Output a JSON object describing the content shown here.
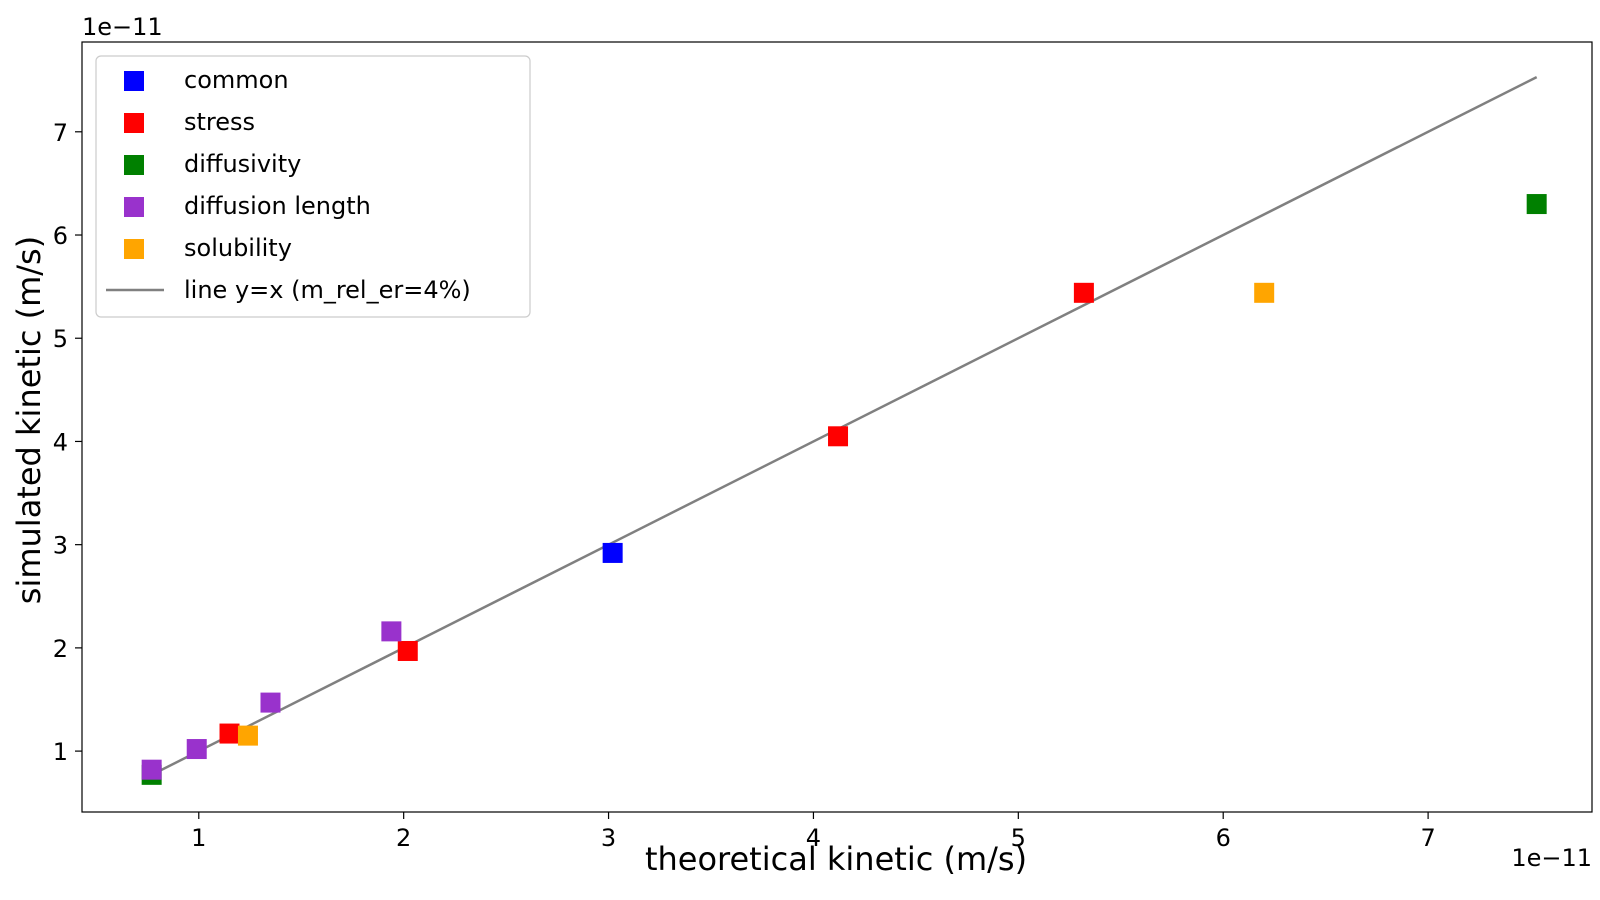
{
  "chart_data": {
    "type": "scatter",
    "xlabel": "theoretical kinetic (m/s)",
    "ylabel": "simulated kinetic (m/s)",
    "x_offset_label": "1e−11",
    "y_offset_label": "1e−11",
    "xlim": [
      0.43,
      7.8
    ],
    "ylim": [
      0.41,
      7.87
    ],
    "xticks": [
      1,
      2,
      3,
      4,
      5,
      6,
      7
    ],
    "yticks": [
      1,
      2,
      3,
      4,
      5,
      6,
      7
    ],
    "xtick_labels": [
      "1",
      "2",
      "3",
      "4",
      "5",
      "6",
      "7"
    ],
    "ytick_labels": [
      "1",
      "2",
      "3",
      "4",
      "5",
      "6",
      "7"
    ],
    "grid": false,
    "legend_position": "upper-left",
    "series": [
      {
        "name": "common",
        "color": "#0000ff",
        "marker": "square",
        "points": [
          [
            3.02,
            2.92
          ]
        ]
      },
      {
        "name": "stress",
        "color": "#ff0000",
        "marker": "square",
        "points": [
          [
            1.15,
            1.17
          ],
          [
            2.02,
            1.97
          ],
          [
            4.12,
            4.05
          ],
          [
            5.32,
            5.44
          ]
        ]
      },
      {
        "name": "diffusivity",
        "color": "#008000",
        "marker": "square",
        "points": [
          [
            0.77,
            0.77
          ],
          [
            7.53,
            6.3
          ]
        ]
      },
      {
        "name": "diffusion length",
        "color": "#9932cc",
        "marker": "square",
        "points": [
          [
            0.77,
            0.82
          ],
          [
            0.99,
            1.02
          ],
          [
            1.35,
            1.47
          ],
          [
            1.94,
            2.16
          ]
        ]
      },
      {
        "name": "solubility",
        "color": "#ffa500",
        "marker": "square",
        "points": [
          [
            1.24,
            1.15
          ],
          [
            6.2,
            5.44
          ]
        ]
      }
    ],
    "reference_line": {
      "name": "line y=x (m_rel_er=4%)",
      "color": "#808080",
      "x": [
        0.75,
        7.53
      ],
      "y": [
        0.75,
        7.53
      ]
    }
  }
}
